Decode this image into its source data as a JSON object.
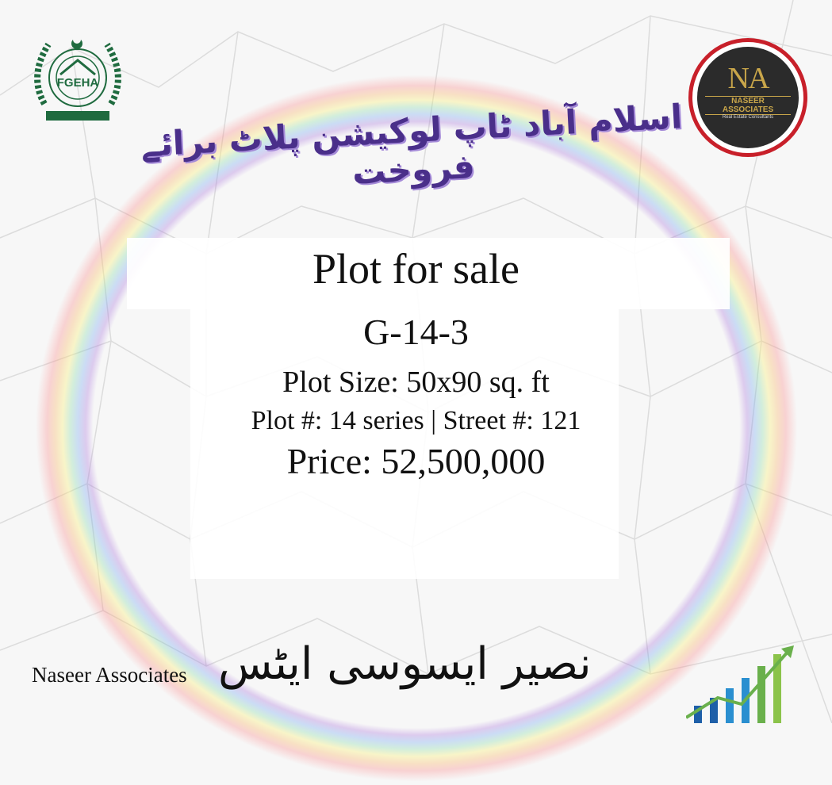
{
  "header": {
    "left_logo": {
      "text": "FGEHA",
      "icon": "fgeha-emblem"
    },
    "right_logo": {
      "monogram": "NA",
      "name": "NASEER ASSOCIATES",
      "tagline": "Real Estate Consultants"
    },
    "urdu_title": "اسلام آباد ٹاپ لوکیشن پلاٹ برائے فروخت"
  },
  "listing": {
    "headline": "Plot for sale",
    "sector": "G-14-3",
    "plot_size": "Plot Size: 50x90 sq. ft",
    "plot_street": "Plot #: 14 series | Street #: 121",
    "price": "Price: 52,500,000"
  },
  "footer": {
    "company_en": "Naseer Associates",
    "company_urdu": "نصیر ایسوسی ایٹس",
    "icon": "growth-chart-icon"
  },
  "colors": {
    "title_purple": "#4a2f8a",
    "emblem_green": "#1f6b3f",
    "ring_red": "#c8202a",
    "gold": "#c9a64a"
  }
}
